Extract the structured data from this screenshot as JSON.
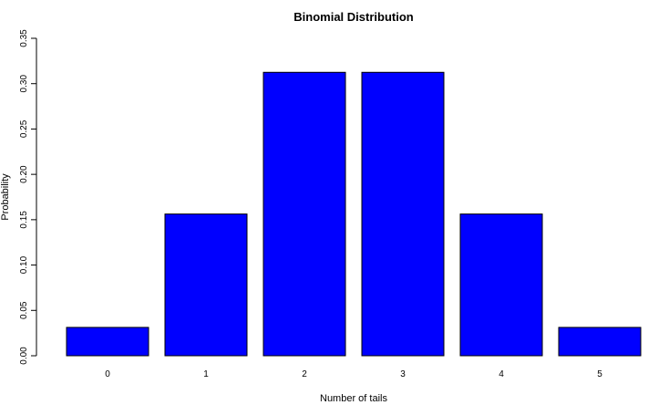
{
  "chart_data": {
    "type": "bar",
    "title": "Binomial Distribution",
    "xlabel": "Number of tails",
    "ylabel": "Probability",
    "categories": [
      "0",
      "1",
      "2",
      "3",
      "4",
      "5"
    ],
    "values": [
      0.03125,
      0.15625,
      0.3125,
      0.3125,
      0.15625,
      0.03125
    ],
    "ylim": [
      0,
      0.35
    ],
    "yticks": [
      "0.00",
      "0.05",
      "0.10",
      "0.15",
      "0.20",
      "0.25",
      "0.30",
      "0.35"
    ],
    "bar_color": "#0000ff",
    "bar_border_color": "#000000",
    "grid": false
  }
}
